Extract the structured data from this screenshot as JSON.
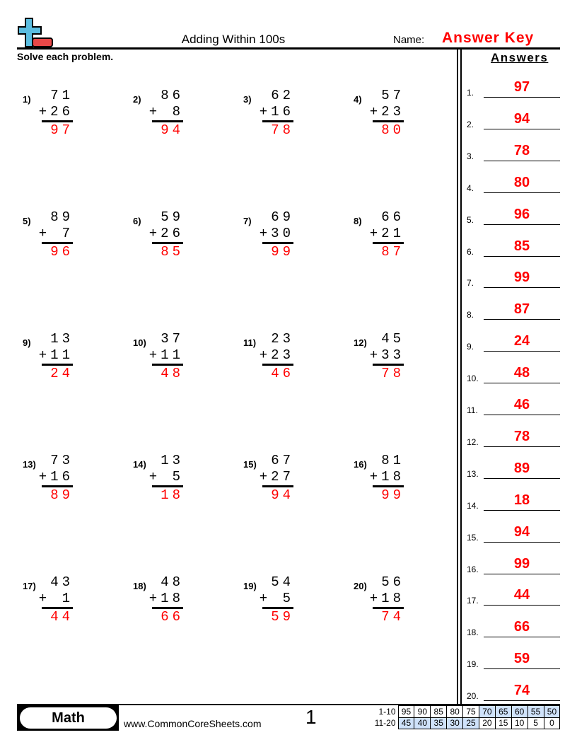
{
  "header": {
    "title": "Adding Within 100s",
    "name_label": "Name:",
    "name_value": "Answer Key",
    "instructions": "Solve each problem.",
    "logo": "plus-minus-logo"
  },
  "problems": [
    {
      "n": "1)",
      "a": "71",
      "b": "+26",
      "ans": "97"
    },
    {
      "n": "2)",
      "a": "86",
      "b": "+ 8",
      "ans": "94"
    },
    {
      "n": "3)",
      "a": "62",
      "b": "+16",
      "ans": "78"
    },
    {
      "n": "4)",
      "a": "57",
      "b": "+23",
      "ans": "80"
    },
    {
      "n": "5)",
      "a": "89",
      "b": "+ 7",
      "ans": "96"
    },
    {
      "n": "6)",
      "a": "59",
      "b": "+26",
      "ans": "85"
    },
    {
      "n": "7)",
      "a": "69",
      "b": "+30",
      "ans": "99"
    },
    {
      "n": "8)",
      "a": "66",
      "b": "+21",
      "ans": "87"
    },
    {
      "n": "9)",
      "a": "13",
      "b": "+11",
      "ans": "24"
    },
    {
      "n": "10)",
      "a": "37",
      "b": "+11",
      "ans": "48"
    },
    {
      "n": "11)",
      "a": "23",
      "b": "+23",
      "ans": "46"
    },
    {
      "n": "12)",
      "a": "45",
      "b": "+33",
      "ans": "78"
    },
    {
      "n": "13)",
      "a": "73",
      "b": "+16",
      "ans": "89"
    },
    {
      "n": "14)",
      "a": "13",
      "b": "+ 5",
      "ans": "18"
    },
    {
      "n": "15)",
      "a": "67",
      "b": "+27",
      "ans": "94"
    },
    {
      "n": "16)",
      "a": "81",
      "b": "+18",
      "ans": "99"
    },
    {
      "n": "17)",
      "a": "43",
      "b": "+ 1",
      "ans": "44"
    },
    {
      "n": "18)",
      "a": "48",
      "b": "+18",
      "ans": "66"
    },
    {
      "n": "19)",
      "a": "54",
      "b": "+ 5",
      "ans": "59"
    },
    {
      "n": "20)",
      "a": "56",
      "b": "+18",
      "ans": "74"
    }
  ],
  "answers": {
    "heading": "Answers",
    "items": [
      {
        "n": "1.",
        "v": "97"
      },
      {
        "n": "2.",
        "v": "94"
      },
      {
        "n": "3.",
        "v": "78"
      },
      {
        "n": "4.",
        "v": "80"
      },
      {
        "n": "5.",
        "v": "96"
      },
      {
        "n": "6.",
        "v": "85"
      },
      {
        "n": "7.",
        "v": "99"
      },
      {
        "n": "8.",
        "v": "87"
      },
      {
        "n": "9.",
        "v": "24"
      },
      {
        "n": "10.",
        "v": "48"
      },
      {
        "n": "11.",
        "v": "46"
      },
      {
        "n": "12.",
        "v": "78"
      },
      {
        "n": "13.",
        "v": "89"
      },
      {
        "n": "14.",
        "v": "18"
      },
      {
        "n": "15.",
        "v": "94"
      },
      {
        "n": "16.",
        "v": "99"
      },
      {
        "n": "17.",
        "v": "44"
      },
      {
        "n": "18.",
        "v": "66"
      },
      {
        "n": "19.",
        "v": "59"
      },
      {
        "n": "20.",
        "v": "74"
      }
    ]
  },
  "footer": {
    "subject": "Math",
    "site": "www.CommonCoreSheets.com",
    "page": "1",
    "score_rows": [
      {
        "label": "1-10",
        "cells": [
          "95",
          "90",
          "85",
          "80",
          "75",
          "70",
          "65",
          "60",
          "55",
          "50"
        ]
      },
      {
        "label": "11-20",
        "cells": [
          "45",
          "40",
          "35",
          "30",
          "25",
          "20",
          "15",
          "10",
          "5",
          "0"
        ]
      }
    ],
    "highlight_color": "#cfe2fa"
  },
  "colors": {
    "answer": "#ff0000",
    "logo_plus": "#5bbde0",
    "logo_minus": "#e84848"
  }
}
